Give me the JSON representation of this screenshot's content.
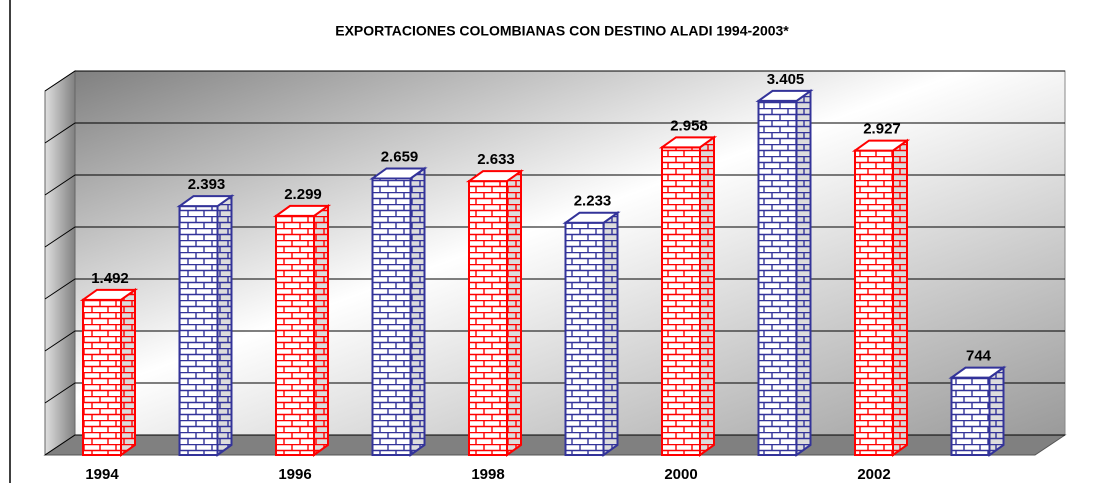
{
  "chart_data": {
    "type": "bar",
    "title": "EXPORTACIONES COLOMBIANAS CON DESTINO ALADI 1994-2003*",
    "categories": [
      "1994",
      null,
      "1996",
      null,
      "1998",
      null,
      "2000",
      null,
      "2002",
      null
    ],
    "values": [
      1492,
      2393,
      2299,
      2659,
      2633,
      2233,
      2958,
      3405,
      2927,
      744
    ],
    "value_labels": [
      "1.492",
      "2.393",
      "2.299",
      "2.659",
      "2.633",
      "2.233",
      "2.958",
      "3.405",
      "2.927",
      "744"
    ],
    "colors": [
      "#ff0000",
      "#333399",
      "#ff0000",
      "#333399",
      "#ff0000",
      "#333399",
      "#ff0000",
      "#333399",
      "#ff0000",
      "#333399"
    ],
    "ylim": [
      0,
      3500
    ],
    "yticks": [
      0,
      500,
      1000,
      1500,
      2000,
      2500,
      3000,
      3500
    ],
    "grid": true
  }
}
